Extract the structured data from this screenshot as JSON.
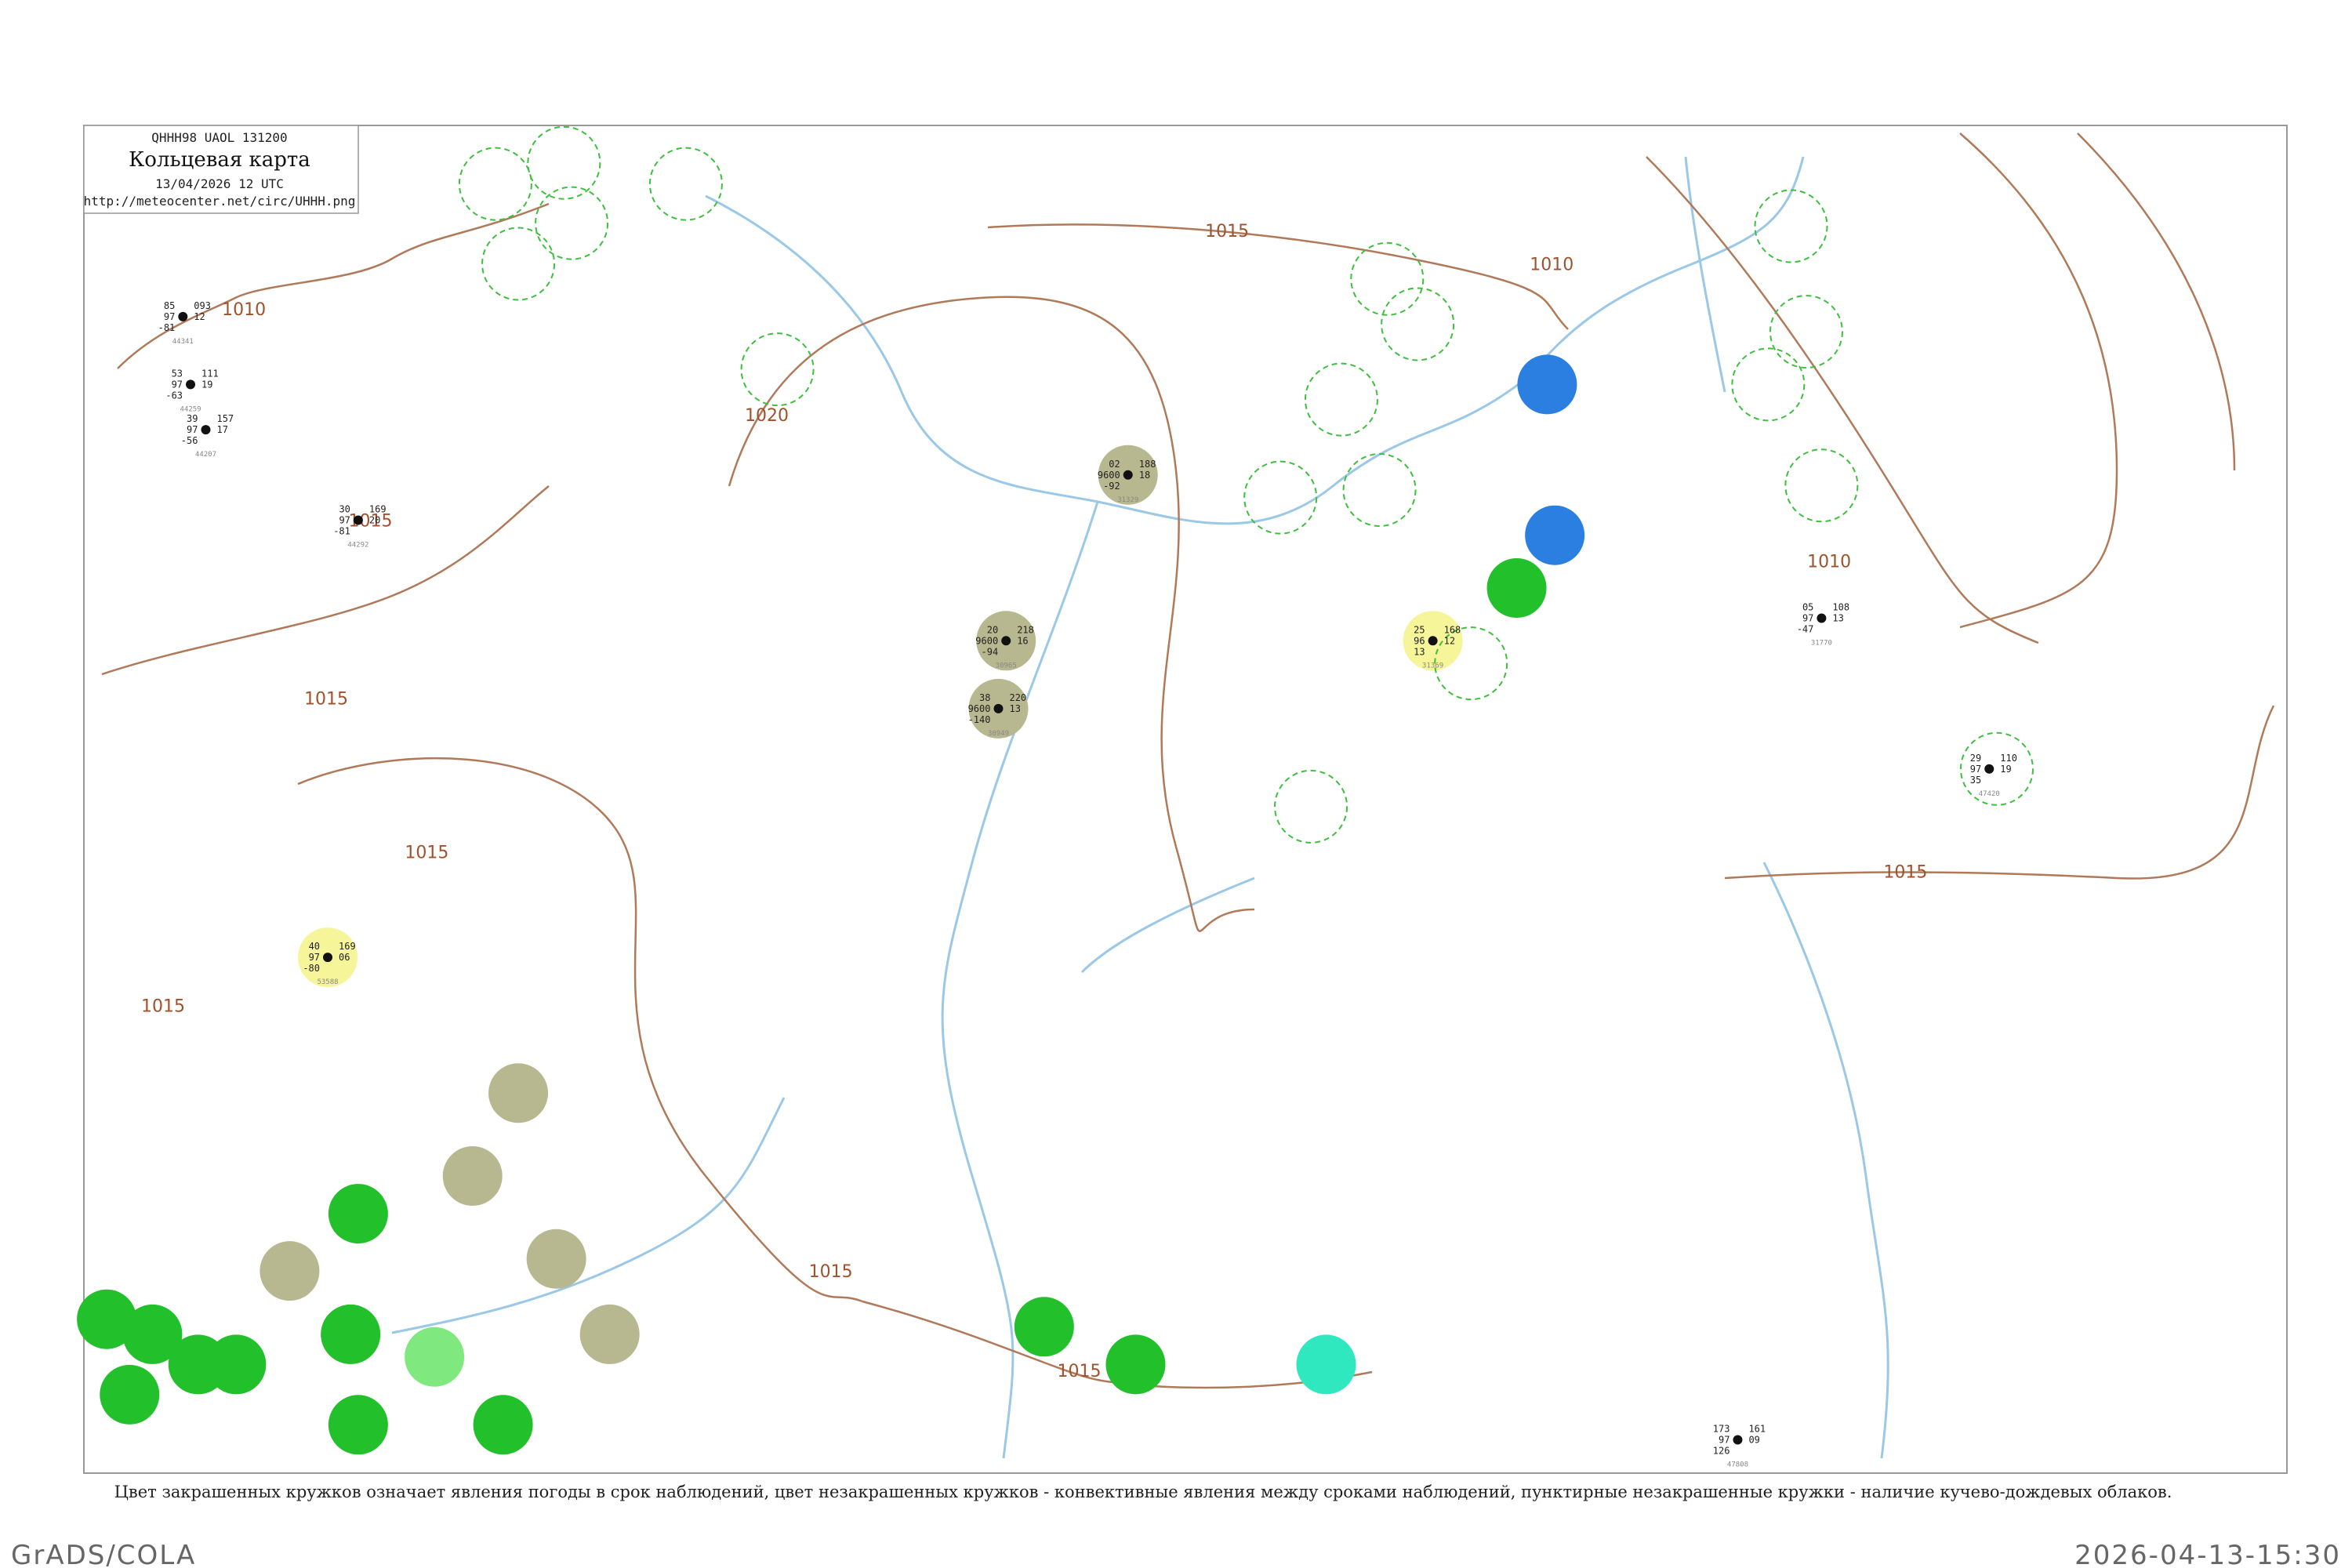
{
  "header": {
    "code": "QHHH98 UAOL 131200",
    "title": "Кольцевая карта",
    "datetime": "13/04/2026 12 UTC",
    "url": "http://meteocenter.net/circ/UHHH.png"
  },
  "isobars": [
    "1010",
    "1010",
    "1010",
    "1015",
    "1015",
    "1015",
    "1015",
    "1015",
    "1015",
    "1015",
    "1020",
    "1015"
  ],
  "stations": [
    {
      "id": "44341",
      "readings": [
        "85",
        "97",
        "-81",
        "093",
        "12"
      ]
    },
    {
      "id": "44259",
      "readings": [
        "53",
        "97",
        "-63",
        "111",
        "19"
      ]
    },
    {
      "id": "44207",
      "readings": [
        "39",
        "97",
        "-56",
        "157",
        "17"
      ]
    },
    {
      "id": "44292",
      "readings": [
        "30",
        "97",
        "-81",
        "169",
        "20"
      ]
    },
    {
      "id": "31329",
      "readings": [
        "02",
        "9600",
        "-92",
        "188",
        "18"
      ]
    },
    {
      "id": "30965",
      "readings": [
        "20",
        "9600",
        "-94",
        "218",
        "16"
      ]
    },
    {
      "id": "30949",
      "readings": [
        "38",
        "9600",
        "-140",
        "220",
        "13"
      ]
    },
    {
      "id": "31369",
      "readings": [
        "25",
        "96",
        "13",
        "168",
        "12"
      ]
    },
    {
      "id": "53588",
      "readings": [
        "40",
        "97",
        "-80",
        "169",
        "06"
      ]
    },
    {
      "id": "47808",
      "readings": [
        "173",
        "97",
        "126",
        "161",
        "09"
      ]
    },
    {
      "id": "31770",
      "readings": [
        "05",
        "97",
        "-47",
        "108",
        "13"
      ]
    },
    {
      "id": "47420",
      "readings": [
        "29",
        "97",
        "35",
        "110",
        "19"
      ]
    }
  ],
  "caption": "Цвет закрашенных кружков означает явления погоды в срок наблюдений, цвет незакрашенных кружков - конвективные явления между сроками наблюдений, пунктирные незакрашенные кружки - наличие кучево-дождевых облаков.",
  "software": "GrADS/COLA",
  "timestamp": "2026-04-13-15:30"
}
